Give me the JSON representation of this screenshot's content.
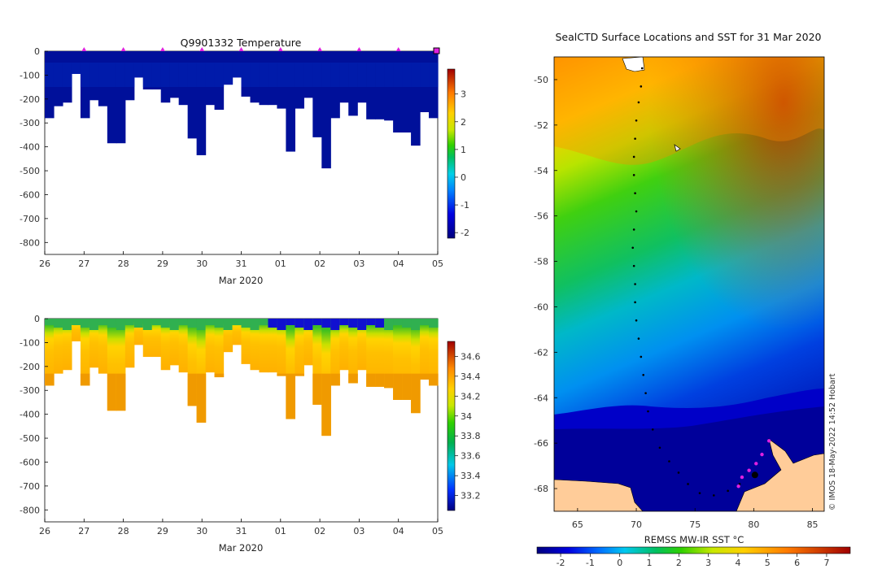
{
  "chart_data": [
    {
      "type": "heatmap",
      "title": "Q9901332  Temperature",
      "xlabel": "Mar 2020",
      "ylabel": "",
      "x_ticks": [
        "26",
        "27",
        "28",
        "29",
        "30",
        "31",
        "01",
        "02",
        "03",
        "04",
        "05"
      ],
      "y_ticks": [
        0,
        -100,
        -200,
        -300,
        -400,
        -500,
        -600,
        -700,
        -800
      ],
      "ylim": [
        -850,
        0
      ],
      "colorbar": {
        "ticks": [
          -2,
          -1,
          0,
          1,
          2,
          3
        ],
        "range": [
          -2.2,
          3.9
        ]
      },
      "profile_depths_m": [
        280,
        230,
        215,
        95,
        280,
        205,
        230,
        385,
        385,
        205,
        110,
        160,
        160,
        215,
        195,
        225,
        365,
        435,
        225,
        245,
        140,
        110,
        190,
        215,
        225,
        225,
        240,
        420,
        240,
        195,
        360,
        490,
        280,
        215,
        270,
        215,
        285,
        285,
        290,
        340,
        340,
        395,
        255,
        280
      ],
      "series_markers": "profile-times"
    },
    {
      "type": "heatmap",
      "title": "",
      "xlabel": "Mar 2020",
      "ylabel": "",
      "x_ticks": [
        "26",
        "27",
        "28",
        "29",
        "30",
        "31",
        "01",
        "02",
        "03",
        "04",
        "05"
      ],
      "y_ticks": [
        0,
        -100,
        -200,
        -300,
        -400,
        -500,
        -600,
        -700,
        -800
      ],
      "ylim": [
        -850,
        0
      ],
      "colorbar": {
        "ticks": [
          34.6,
          34.4,
          34.2,
          34,
          33.8,
          33.6,
          33.4,
          33.2
        ],
        "range": [
          33.05,
          34.75
        ]
      }
    },
    {
      "type": "heatmap",
      "title": "SealCTD Surface Locations and SST for 31 Mar 2020",
      "xlabel": "REMSS MW-IR SST °C",
      "x_ticks": [
        65,
        70,
        75,
        80,
        85
      ],
      "xlim": [
        63,
        86
      ],
      "y_ticks": [
        -50,
        -52,
        -54,
        -56,
        -58,
        -60,
        -62,
        -64,
        -66,
        -68
      ],
      "ylim": [
        -69,
        -49
      ],
      "colorbar": {
        "ticks": [
          -2,
          -1,
          0,
          1,
          2,
          3,
          4,
          5,
          6,
          7
        ],
        "range": [
          -2.8,
          7.8
        ]
      },
      "track_points": "seal-track-lon-lat"
    }
  ],
  "credit": "© IMOS 18-May-2022 14:52 Hobart"
}
